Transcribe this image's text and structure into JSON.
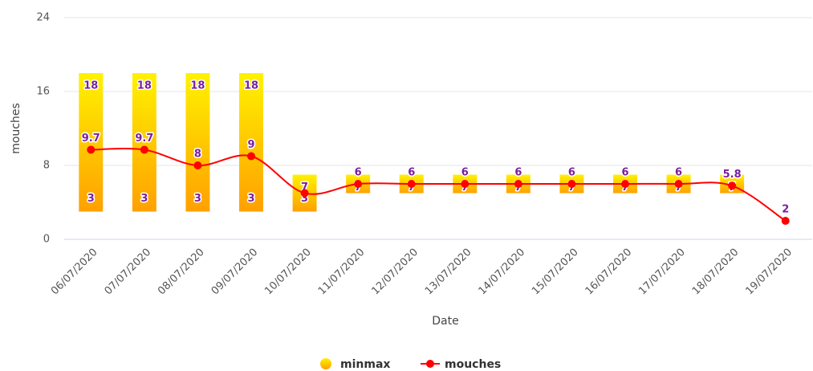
{
  "chart_data": {
    "type": "combo",
    "x_label": "Date",
    "y_label": "mouches",
    "categories": [
      "06/07/2020",
      "07/07/2020",
      "08/07/2020",
      "09/07/2020",
      "10/07/2020",
      "11/07/2020",
      "12/07/2020",
      "13/07/2020",
      "14/07/2020",
      "15/07/2020",
      "16/07/2020",
      "17/07/2020",
      "18/07/2020",
      "19/07/2020"
    ],
    "ylim": [
      0,
      24
    ],
    "yticks": [
      0,
      8,
      16,
      24
    ],
    "grid": true,
    "series": [
      {
        "name": "minmax",
        "type": "columnrange",
        "color": "#ffc400",
        "low": [
          3,
          3,
          3,
          3,
          3,
          5,
          5,
          5,
          5,
          5,
          5,
          5,
          5,
          null
        ],
        "high": [
          18,
          18,
          18,
          18,
          7,
          7,
          7,
          7,
          7,
          7,
          7,
          7,
          7,
          null
        ]
      },
      {
        "name": "mouches",
        "type": "spline",
        "color": "#ff0000",
        "values": [
          9.7,
          9.7,
          8,
          9,
          5,
          6,
          6,
          6,
          6,
          6,
          6,
          6,
          5.8,
          2
        ],
        "value_labels": [
          "9.7",
          "9.7",
          "8",
          "9",
          null,
          "6",
          "6",
          "6",
          "6",
          "6",
          "6",
          "6",
          "5.8",
          "2"
        ]
      }
    ]
  }
}
